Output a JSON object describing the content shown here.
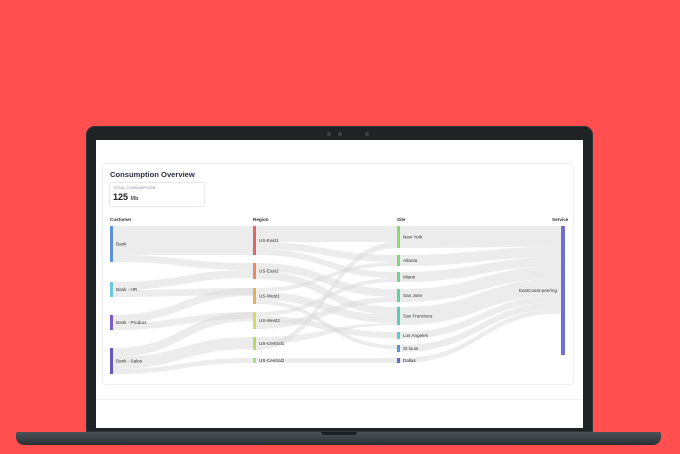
{
  "dashboard": {
    "title": "Consumption Overview",
    "total_label": "TOTAL CONSUMPTION",
    "total_value": "125",
    "total_unit": "Mb"
  },
  "columns": [
    "Customer",
    "Region",
    "Site",
    "Service"
  ],
  "sankey": {
    "customers": [
      {
        "label": "Bank",
        "color": "#5b8fd6"
      },
      {
        "label": "Bank - HR",
        "color": "#6cc6dd"
      },
      {
        "label": "Bank - Product",
        "color": "#7b5cc9"
      },
      {
        "label": "Bank - Sales",
        "color": "#6956b8"
      }
    ],
    "regions": [
      {
        "label": "US-East1",
        "color": "#d96a6a"
      },
      {
        "label": "US-East2",
        "color": "#e38b63"
      },
      {
        "label": "US-West1",
        "color": "#e0b160"
      },
      {
        "label": "US-West2",
        "color": "#d9d66b"
      },
      {
        "label": "US-Central1",
        "color": "#b7d86a"
      },
      {
        "label": "US-Central2",
        "color": "#a9dc79"
      }
    ],
    "sites": [
      {
        "label": "New York",
        "color": "#8fd66e"
      },
      {
        "label": "Atlanta",
        "color": "#7fd47d"
      },
      {
        "label": "Miami",
        "color": "#70d291"
      },
      {
        "label": "San Jose",
        "color": "#62cf9e"
      },
      {
        "label": "San Francisco",
        "color": "#5ccdb4"
      },
      {
        "label": "Los Angeles",
        "color": "#61c6d8"
      },
      {
        "label": "St.louis",
        "color": "#5d8fd6"
      },
      {
        "label": "Dallas",
        "color": "#6568c9"
      }
    ],
    "services": [
      {
        "label": "EastCoast-peering",
        "color": "#6d6fd1"
      }
    ]
  },
  "theme": {
    "background": "#ff4f4f",
    "flow": "#dcdcdc"
  }
}
